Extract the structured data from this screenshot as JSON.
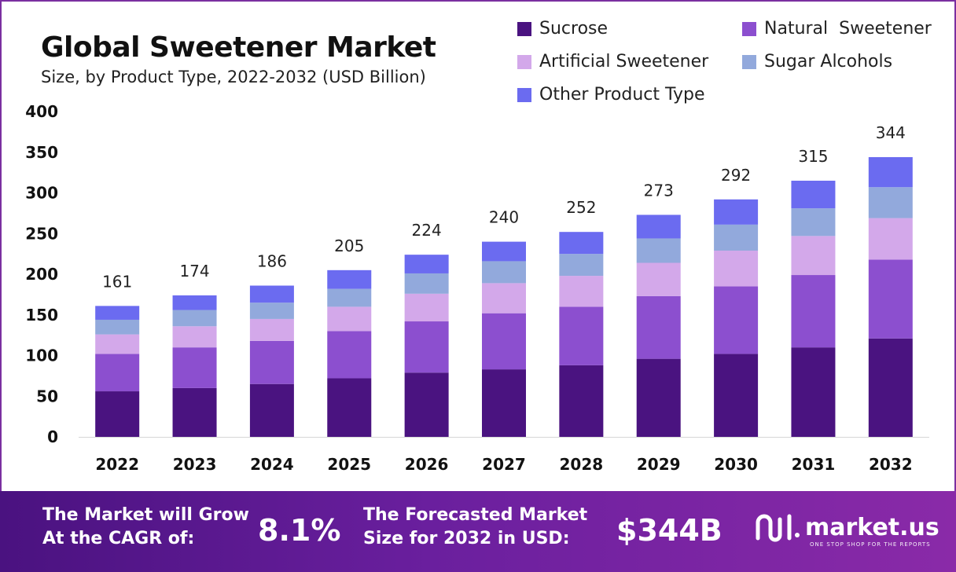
{
  "header": {
    "title": "Global Sweetener Market",
    "subtitle": "Size, by Product Type, 2022-2032 (USD Billion)"
  },
  "chart_data": {
    "type": "bar",
    "stacked": true,
    "categories": [
      "2022",
      "2023",
      "2024",
      "2025",
      "2026",
      "2027",
      "2028",
      "2029",
      "2030",
      "2031",
      "2032"
    ],
    "totals": [
      161,
      174,
      186,
      205,
      224,
      240,
      252,
      273,
      292,
      315,
      344
    ],
    "series": [
      {
        "name": "Sucrose",
        "color": "#4a1380",
        "values": [
          56,
          60,
          65,
          72,
          79,
          83,
          88,
          96,
          102,
          110,
          121
        ]
      },
      {
        "name": "Natural  Sweetener",
        "color": "#8c4fcf",
        "values": [
          46,
          50,
          53,
          58,
          63,
          69,
          72,
          77,
          83,
          89,
          97
        ]
      },
      {
        "name": "Artificial Sweetener",
        "color": "#d3a8ea",
        "values": [
          24,
          26,
          27,
          30,
          34,
          37,
          38,
          41,
          44,
          48,
          51
        ]
      },
      {
        "name": "Sugar Alcohols",
        "color": "#92a9dc",
        "values": [
          18,
          20,
          20,
          22,
          25,
          27,
          27,
          30,
          32,
          34,
          38
        ]
      },
      {
        "name": "Other Product Type",
        "color": "#6b6bf0",
        "values": [
          17,
          18,
          21,
          23,
          23,
          24,
          27,
          29,
          31,
          34,
          37
        ]
      }
    ],
    "ylim": [
      0,
      400
    ],
    "yticks": [
      0,
      50,
      100,
      150,
      200,
      250,
      300,
      350,
      400
    ],
    "grid": false,
    "legend_position": "top-right"
  },
  "footer": {
    "cagr_label_line1": "The Market will Grow",
    "cagr_label_line2": "At the CAGR of:",
    "cagr_value": "8.1%",
    "forecast_label_line1": "The Forecasted Market",
    "forecast_label_line2": "Size for 2032 in USD:",
    "forecast_value": "$344B",
    "brand_name": "market.us",
    "brand_tagline": "ONE STOP SHOP FOR THE REPORTS"
  }
}
